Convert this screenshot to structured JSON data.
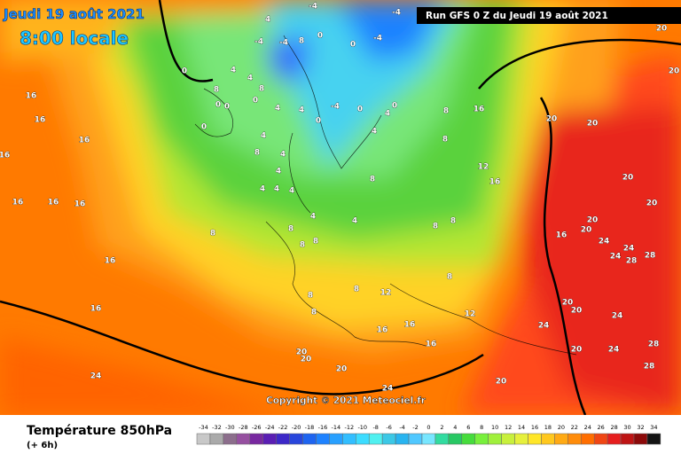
{
  "header": {
    "date": "Jeudi 19 août 2021",
    "local_time": "8:00 locale",
    "run": "Run GFS 0 Z du Jeudi 19 août 2021"
  },
  "copyright": "Copyright © 2021 Meteociel.fr",
  "footer": {
    "title": "Température 850hPa",
    "lead": "(+ 6h)"
  },
  "scale": {
    "values": [
      -34,
      -32,
      -30,
      -28,
      -26,
      -24,
      -22,
      -20,
      -18,
      -16,
      -14,
      -12,
      -10,
      -8,
      -6,
      -4,
      -2,
      0,
      2,
      4,
      6,
      8,
      10,
      12,
      14,
      16,
      18,
      20,
      22,
      24,
      26,
      28,
      30,
      32,
      34
    ],
    "colors": [
      "#c8c8c8",
      "#aaaaaa",
      "#8c6e8c",
      "#9650a0",
      "#7828a0",
      "#5a1eb4",
      "#3c28c8",
      "#2846dc",
      "#1e64f0",
      "#1e82ff",
      "#28a0ff",
      "#32beff",
      "#3cdcff",
      "#50f0f0",
      "#3cc8e6",
      "#28b4f0",
      "#50c8ff",
      "#78e6ff",
      "#32dca0",
      "#28c864",
      "#46dc3c",
      "#78f03c",
      "#a0f03c",
      "#c8f03c",
      "#e6f03c",
      "#ffe628",
      "#ffc81e",
      "#ffaa14",
      "#ff8c0a",
      "#ff6e00",
      "#f04614",
      "#e61e1e",
      "#be1414",
      "#8c0a0a",
      "#141414"
    ]
  },
  "contour_labels": [
    -4,
    -4,
    4,
    -4,
    8,
    -4,
    0,
    -4,
    0,
    0,
    4,
    4,
    8,
    8,
    0,
    0,
    0,
    4,
    0,
    4,
    -4,
    0,
    4,
    0,
    4,
    8,
    16,
    0,
    4,
    8,
    4,
    4,
    4,
    4,
    4,
    8,
    12,
    16,
    8,
    4,
    4,
    8,
    8,
    8,
    8,
    8,
    8,
    8,
    8,
    8,
    12,
    12,
    8,
    16,
    16,
    16,
    20,
    20,
    20,
    24,
    20,
    24,
    16,
    16,
    16,
    16,
    16,
    16,
    16,
    16,
    16,
    20,
    20,
    20,
    20,
    20,
    16,
    20,
    24,
    24,
    24,
    28,
    28,
    20,
    20,
    24,
    24,
    20,
    24,
    28,
    28,
    20,
    20
  ]
}
